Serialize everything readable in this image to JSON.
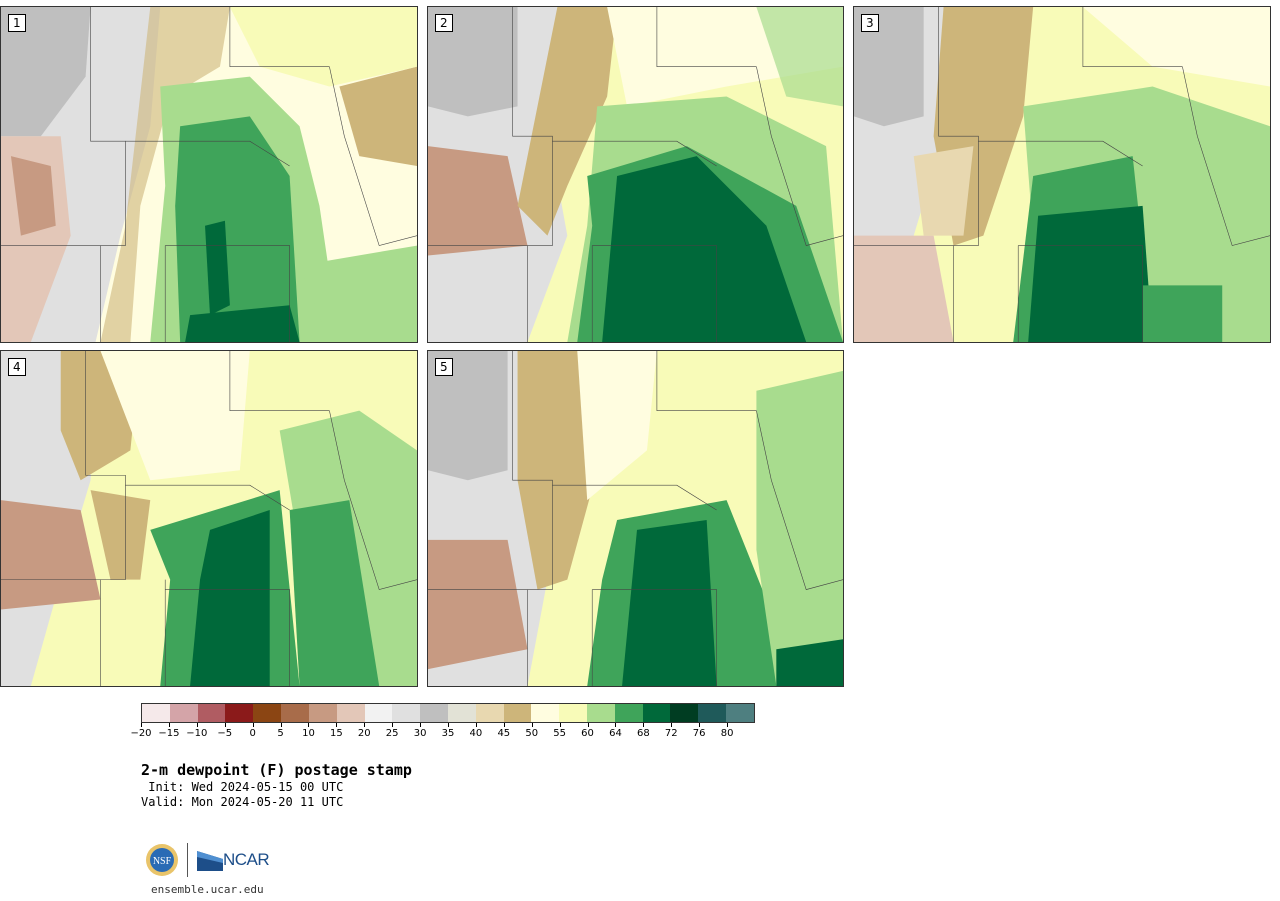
{
  "panels": [
    {
      "label": "1"
    },
    {
      "label": "2"
    },
    {
      "label": "3"
    },
    {
      "label": "4"
    },
    {
      "label": "5"
    }
  ],
  "colorbar": {
    "colors": [
      "#f5e9ea",
      "#d4a4a8",
      "#b05c62",
      "#8b1a1a",
      "#8b4513",
      "#a86c4a",
      "#c79a82",
      "#e3c7b8",
      "#f2f2f2",
      "#e0e0e0",
      "#bfbfbf",
      "#e2e2d6",
      "#e8d8b0",
      "#cdb57a",
      "#fffde0",
      "#f8fbb8",
      "#a8dc8e",
      "#3fa45a",
      "#00693a",
      "#003d22",
      "#1f5a5a",
      "#4e7f80"
    ],
    "tick_labels": [
      "-20",
      "-15",
      "-10",
      "-5",
      "0",
      "5",
      "10",
      "15",
      "20",
      "25",
      "30",
      "35",
      "40",
      "45",
      "50",
      "55",
      "60",
      "64",
      "68",
      "72",
      "76",
      "80"
    ]
  },
  "title": "2-m dewpoint (F) postage stamp",
  "init_line": " Init: Wed 2024-05-15 00 UTC",
  "valid_line": "Valid: Mon 2024-05-20 11 UTC",
  "logo": {
    "nsf_text": "NSF",
    "ncar_text": "NCAR"
  },
  "site": "ensemble.ucar.edu"
}
